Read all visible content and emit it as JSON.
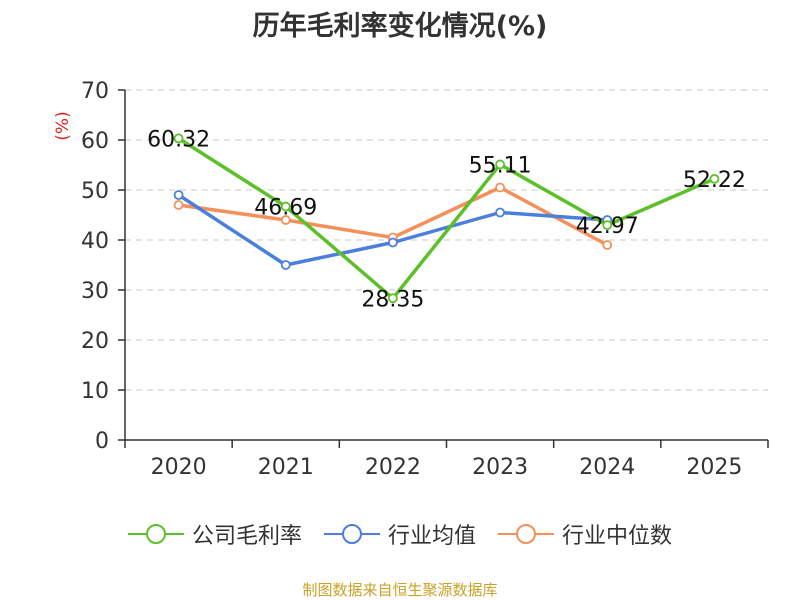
{
  "chart_data": {
    "type": "line",
    "title": "历年毛利率变化情况(%)",
    "ylabel": "(%)",
    "xlabel": "",
    "categories": [
      "2020",
      "2021",
      "2022",
      "2023",
      "2024",
      "2025"
    ],
    "ylim": [
      0,
      70
    ],
    "yticks": [
      0,
      10,
      20,
      30,
      40,
      50,
      60,
      70
    ],
    "grid": true,
    "legend_position": "bottom",
    "series": [
      {
        "name": "公司毛利率",
        "color": "#5cc02a",
        "values": [
          60.32,
          46.69,
          28.35,
          55.11,
          42.97,
          52.22
        ],
        "labels": [
          "60.32",
          "46.69",
          "28.35",
          "55.11",
          "42.97",
          "52.22"
        ]
      },
      {
        "name": "行业均值",
        "color": "#4a7fdd",
        "values": [
          49,
          35,
          39.5,
          45.5,
          44,
          null
        ]
      },
      {
        "name": "行业中位数",
        "color": "#f5905a",
        "values": [
          47,
          44,
          40.5,
          50.5,
          39,
          null
        ]
      }
    ]
  },
  "footer": "制图数据来自恒生聚源数据库"
}
